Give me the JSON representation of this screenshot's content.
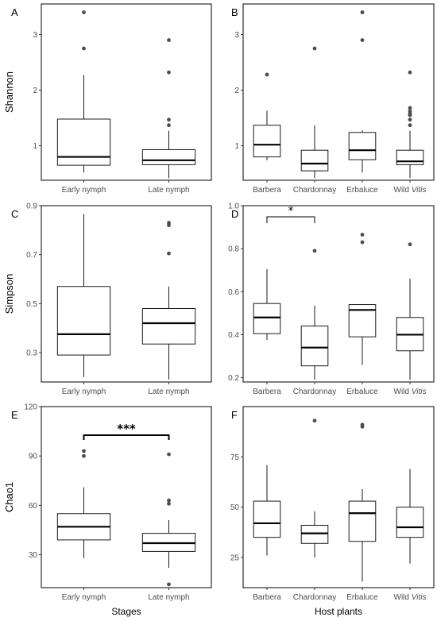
{
  "chart_data": [
    {
      "panel": "A",
      "type": "box",
      "ylabel": "Shannon",
      "ylim": [
        0.38,
        3.55
      ],
      "yticks": [
        1,
        2,
        3
      ],
      "categories": [
        "Early nymph",
        "Late nymph"
      ],
      "series": [
        {
          "category": "Early nymph",
          "min": 0.52,
          "q1": 0.65,
          "median": 0.8,
          "q3": 1.48,
          "max": 2.27,
          "outliers": [
            2.75,
            3.4
          ]
        },
        {
          "category": "Late nymph",
          "min": 0.42,
          "q1": 0.66,
          "median": 0.74,
          "q3": 0.93,
          "max": 1.27,
          "outliers": [
            1.37,
            1.47,
            2.32,
            2.9
          ]
        }
      ]
    },
    {
      "panel": "B",
      "type": "box",
      "ylabel": "",
      "ylim": [
        0.38,
        3.55
      ],
      "yticks": [
        1,
        2,
        3
      ],
      "categories": [
        "Barbera",
        "Chardonnay",
        "Erbaluce",
        "Wild Vitis"
      ],
      "series": [
        {
          "category": "Barbera",
          "min": 0.74,
          "q1": 0.8,
          "median": 1.02,
          "q3": 1.37,
          "max": 1.63,
          "outliers": [
            2.28
          ]
        },
        {
          "category": "Chardonnay",
          "min": 0.42,
          "q1": 0.55,
          "median": 0.68,
          "q3": 0.92,
          "max": 1.37,
          "outliers": [
            2.75
          ]
        },
        {
          "category": "Erbaluce",
          "min": 0.52,
          "q1": 0.75,
          "median": 0.92,
          "q3": 1.24,
          "max": 1.28,
          "outliers": [
            2.9,
            3.4
          ]
        },
        {
          "category": "Wild Vitis",
          "min": 0.42,
          "q1": 0.66,
          "median": 0.72,
          "q3": 0.92,
          "max": 1.27,
          "outliers": [
            1.37,
            1.47,
            1.55,
            1.58,
            1.62,
            1.68,
            2.32
          ]
        }
      ]
    },
    {
      "panel": "C",
      "type": "box",
      "ylabel": "Simpson",
      "ylim": [
        0.18,
        0.9
      ],
      "yticks": [
        0.3,
        0.5,
        0.7,
        0.9
      ],
      "categories": [
        "Early nymph",
        "Late nymph"
      ],
      "series": [
        {
          "category": "Early nymph",
          "min": 0.2,
          "q1": 0.29,
          "median": 0.375,
          "q3": 0.57,
          "max": 0.865,
          "outliers": []
        },
        {
          "category": "Late nymph",
          "min": 0.19,
          "q1": 0.335,
          "median": 0.42,
          "q3": 0.48,
          "max": 0.57,
          "outliers": [
            0.705,
            0.82,
            0.83
          ]
        }
      ]
    },
    {
      "panel": "D",
      "type": "box",
      "ylabel": "",
      "ylim": [
        0.18,
        1.0
      ],
      "yticks": [
        0.2,
        0.4,
        0.6,
        0.8,
        1.0
      ],
      "categories": [
        "Barbera",
        "Chardonnay",
        "Erbaluce",
        "Wild Vitis"
      ],
      "series": [
        {
          "category": "Barbera",
          "min": 0.375,
          "q1": 0.405,
          "median": 0.48,
          "q3": 0.545,
          "max": 0.705,
          "outliers": []
        },
        {
          "category": "Chardonnay",
          "min": 0.19,
          "q1": 0.255,
          "median": 0.34,
          "q3": 0.44,
          "max": 0.535,
          "outliers": [
            0.79
          ]
        },
        {
          "category": "Erbaluce",
          "min": 0.26,
          "q1": 0.39,
          "median": 0.515,
          "q3": 0.54,
          "max": 0.54,
          "outliers": [
            0.83,
            0.865
          ]
        },
        {
          "category": "Wild Vitis",
          "min": 0.19,
          "q1": 0.325,
          "median": 0.4,
          "q3": 0.48,
          "max": 0.66,
          "outliers": [
            0.82
          ]
        }
      ],
      "annotation": {
        "from": "Barbera",
        "to": "Chardonnay",
        "label": "*"
      }
    },
    {
      "panel": "E",
      "type": "box",
      "ylabel": "Chao1",
      "xlabel": "Stages",
      "ylim": [
        10,
        120
      ],
      "yticks": [
        30,
        60,
        90,
        120
      ],
      "categories": [
        "Early nymph",
        "Late nymph"
      ],
      "series": [
        {
          "category": "Early nymph",
          "min": 28,
          "q1": 39,
          "median": 47,
          "q3": 55,
          "max": 71,
          "outliers": [
            90,
            93
          ]
        },
        {
          "category": "Late nymph",
          "min": 22,
          "q1": 32,
          "median": 37,
          "q3": 43,
          "max": 51,
          "outliers": [
            12,
            61,
            63,
            91
          ]
        }
      ],
      "annotation": {
        "from": "Early nymph",
        "to": "Late nymph",
        "label": "***"
      }
    },
    {
      "panel": "F",
      "type": "box",
      "ylabel": "",
      "xlabel": "Host plants",
      "ylim": [
        10,
        100
      ],
      "yticks": [
        25,
        50,
        75
      ],
      "categories": [
        "Barbera",
        "Chardonnay",
        "Erbaluce",
        "Wild Vitis"
      ],
      "series": [
        {
          "category": "Barbera",
          "min": 26,
          "q1": 35,
          "median": 42,
          "q3": 53,
          "max": 71,
          "outliers": []
        },
        {
          "category": "Chardonnay",
          "min": 25,
          "q1": 32,
          "median": 37,
          "q3": 41,
          "max": 48,
          "outliers": [
            93
          ]
        },
        {
          "category": "Erbaluce",
          "min": 13,
          "q1": 33,
          "median": 47,
          "q3": 53,
          "max": 59,
          "outliers": [
            90,
            91
          ]
        },
        {
          "category": "Wild Vitis",
          "min": 22,
          "q1": 35,
          "median": 40,
          "q3": 50,
          "max": 69,
          "outliers": []
        }
      ]
    }
  ]
}
